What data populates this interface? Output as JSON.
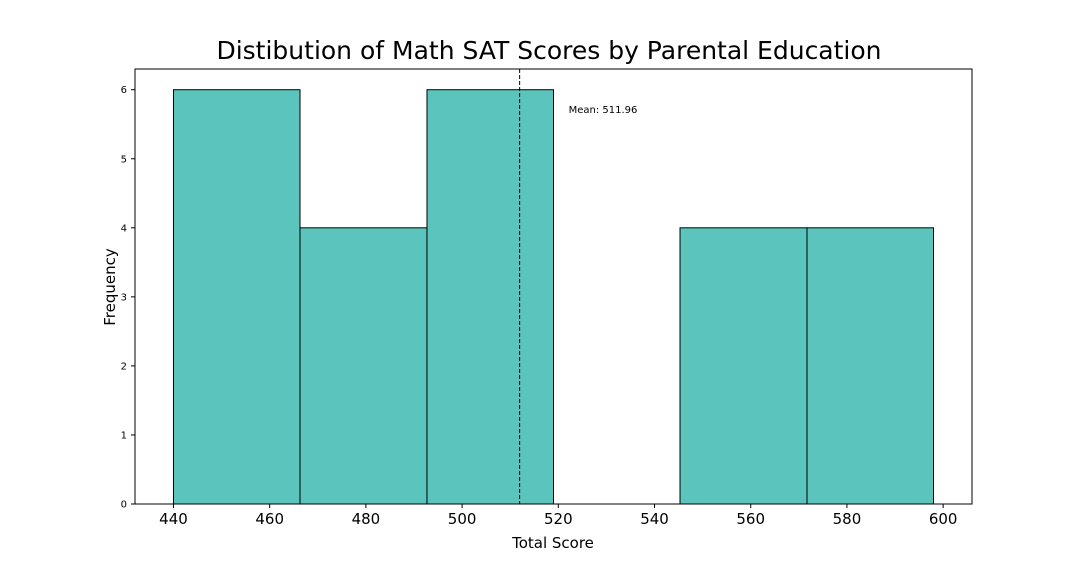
{
  "chart_data": {
    "type": "bar",
    "title": "Distibution of Math SAT Scores by Parental Education",
    "xlabel": "Total Score",
    "ylabel": "Frequency",
    "xlim": [
      432,
      606
    ],
    "ylim": [
      0,
      6.3
    ],
    "xticks": [
      440,
      460,
      480,
      500,
      520,
      540,
      560,
      580,
      600
    ],
    "yticks": [
      0,
      1,
      2,
      3,
      4,
      5,
      6
    ],
    "bins": [
      {
        "start": 440.0,
        "end": 466.3,
        "count": 6
      },
      {
        "start": 466.3,
        "end": 492.7,
        "count": 4
      },
      {
        "start": 492.7,
        "end": 519.0,
        "count": 6
      },
      {
        "start": 519.0,
        "end": 545.3,
        "count": 0
      },
      {
        "start": 545.3,
        "end": 571.7,
        "count": 4
      },
      {
        "start": 571.7,
        "end": 598.0,
        "count": 4
      }
    ],
    "mean": 511.96,
    "mean_label": "Mean: 511.96",
    "bar_color": "#5bc5bd",
    "edge_color": "#000000",
    "grid": false
  }
}
